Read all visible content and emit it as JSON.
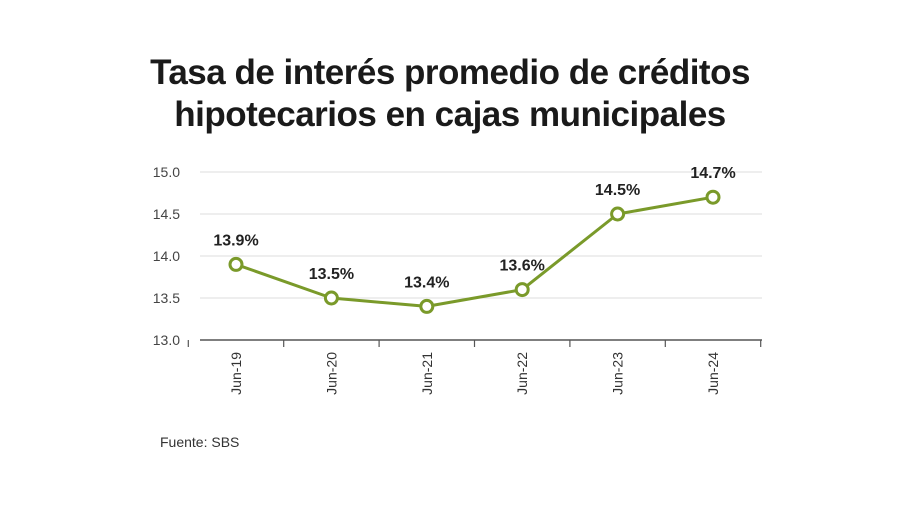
{
  "title_lines": [
    "Tasa de interés promedio de créditos",
    "hipotecarios en cajas municipales"
  ],
  "source": "Fuente: SBS",
  "colors": {
    "line": "#7a9a2a",
    "grid": "#dddddd",
    "axis": "#555555",
    "text": "#222222"
  },
  "chart_data": {
    "type": "line",
    "title": "Tasa de interés promedio de créditos hipotecarios en cajas municipales",
    "categories": [
      "Jun-19",
      "Jun-20",
      "Jun-21",
      "Jun-22",
      "Jun-23",
      "Jun-24"
    ],
    "values": [
      13.9,
      13.5,
      13.4,
      13.6,
      14.5,
      14.7
    ],
    "data_labels": [
      "13.9%",
      "13.5%",
      "13.4%",
      "13.6%",
      "14.5%",
      "14.7%"
    ],
    "y_ticks": [
      "13.0",
      "13.5",
      "14.0",
      "14.5",
      "15.0"
    ],
    "ylim": [
      13.0,
      15.0
    ],
    "xlabel": "",
    "ylabel": "",
    "grid": true
  }
}
